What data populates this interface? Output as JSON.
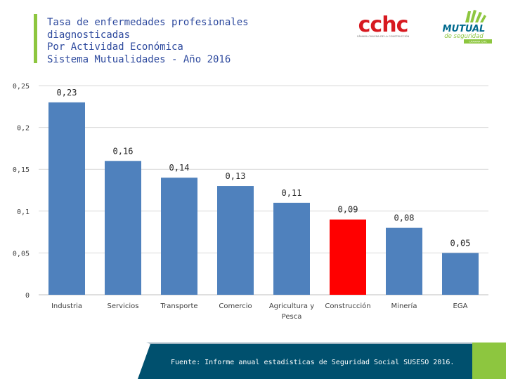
{
  "header": {
    "title_lines": [
      "Tasa de enfermedades profesionales",
      "diagnosticadas",
      "Por Actividad Económica",
      "Sistema Mutualidades - Año 2016"
    ]
  },
  "logos": {
    "cchc": {
      "text": "cchc",
      "subtext": "CÁMARA CHILENA DE LA CONSTRUCCIÓN"
    },
    "mutual": {
      "line1": "MUTUAL",
      "line2": "de seguridad",
      "line3": "CÁMARA CHC"
    }
  },
  "colors": {
    "bar": "#4f81bd",
    "highlight": "#ff0000",
    "accent": "#8dc63f",
    "footer": "#00506e",
    "title": "#2e4a9e"
  },
  "chart_data": {
    "type": "bar",
    "title": "",
    "xlabel": "",
    "ylabel": "",
    "ylim": [
      0,
      0.25
    ],
    "yticks": [
      0,
      0.05,
      0.1,
      0.15,
      0.2,
      0.25
    ],
    "ytick_labels": [
      "0",
      "0,05",
      "0,1",
      "0,15",
      "0,2",
      "0,25"
    ],
    "categories": [
      [
        "Industria"
      ],
      [
        "Servicios"
      ],
      [
        "Transporte"
      ],
      [
        "Comercio"
      ],
      [
        "Agricultura y",
        "Pesca"
      ],
      [
        "Construcción"
      ],
      [
        "Minería"
      ],
      [
        "EGA"
      ]
    ],
    "values": [
      0.23,
      0.16,
      0.14,
      0.13,
      0.11,
      0.09,
      0.08,
      0.05
    ],
    "value_labels": [
      "0,23",
      "0,16",
      "0,14",
      "0,13",
      "0,11",
      "0,09",
      "0,08",
      "0,05"
    ],
    "highlight_index": 5,
    "grid": true
  },
  "footer": {
    "source": "Fuente: Informe anual estadísticas de Seguridad Social SUSESO 2016."
  }
}
